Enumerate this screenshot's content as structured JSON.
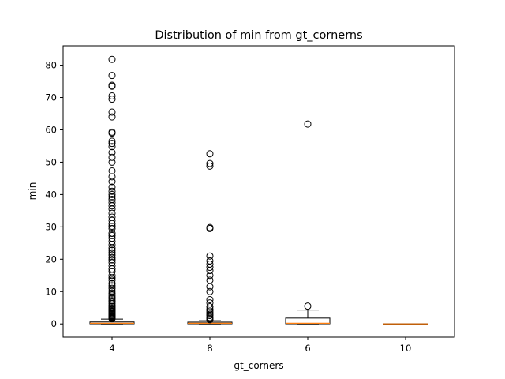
{
  "chart_data": {
    "type": "box",
    "title": "Distribution of min from gt_cornerns",
    "xlabel": "gt_corners",
    "ylabel": "min",
    "categories": [
      "4",
      "8",
      "6",
      "10"
    ],
    "ylim": [
      -4.1,
      86.0
    ],
    "yticks": [
      0,
      10,
      20,
      30,
      40,
      50,
      60,
      70,
      80
    ],
    "grid": false,
    "legend": "none",
    "boxes": [
      {
        "category": "4",
        "whisker_low": 0.0,
        "q1": 0.05,
        "median": 0.2,
        "q3": 0.6,
        "whisker_high": 1.5,
        "outliers": [
          1.6,
          1.8,
          2.0,
          2.2,
          2.4,
          2.6,
          2.9,
          3.2,
          3.5,
          3.8,
          4.1,
          4.4,
          4.7,
          5.0,
          5.4,
          5.8,
          6.3,
          6.8,
          7.2,
          7.8,
          8.3,
          8.9,
          9.5,
          10.2,
          11.0,
          11.8,
          12.5,
          13.5,
          14.2,
          15.0,
          16.2,
          17.0,
          18.0,
          19.0,
          19.8,
          20.5,
          21.3,
          22.0,
          22.8,
          23.5,
          24.5,
          25.5,
          26.5,
          27.3,
          28.0,
          29.5,
          30.2,
          31.0,
          32.0,
          33.0,
          34.2,
          35.5,
          36.5,
          37.5,
          38.5,
          39.3,
          40.0,
          41.0,
          42.3,
          44.0,
          45.5,
          47.3,
          50.0,
          51.5,
          53.0,
          54.8,
          55.8,
          56.5,
          59.0,
          59.3,
          64.0,
          65.5,
          69.5,
          70.5,
          73.5,
          73.8,
          76.8,
          81.8
        ]
      },
      {
        "category": "8",
        "whisker_low": 0.0,
        "q1": 0.05,
        "median": 0.2,
        "q3": 0.55,
        "whisker_high": 1.0,
        "outliers": [
          1.3,
          1.6,
          2.0,
          2.6,
          3.0,
          3.5,
          4.0,
          4.6,
          5.3,
          6.5,
          7.5,
          10.0,
          11.5,
          13.5,
          15.0,
          16.5,
          17.5,
          18.5,
          19.5,
          21.0,
          29.5,
          29.8,
          48.8,
          49.6,
          52.6
        ]
      },
      {
        "category": "6",
        "whisker_low": 0.0,
        "q1": 0.05,
        "median": 0.2,
        "q3": 1.8,
        "whisker_high": 4.3,
        "outliers": [
          5.5,
          61.8
        ]
      },
      {
        "category": "10",
        "whisker_low": 0.0,
        "q1": 0.0,
        "median": 0.0,
        "q3": 0.05,
        "whisker_high": 0.05,
        "outliers": []
      }
    ],
    "colors": {
      "box": "#000000",
      "median": "#ff7f0e",
      "background": "#ffffff"
    }
  }
}
